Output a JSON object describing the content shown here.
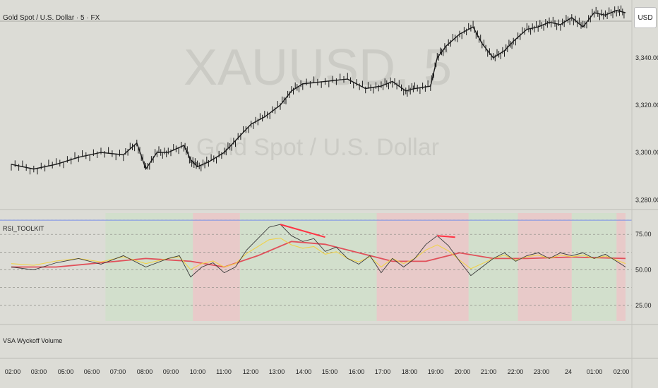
{
  "header": {
    "symbol_title": "Gold Spot / U.S. Dollar · 5 · FX",
    "watermark_symbol": "XAUUSD, 5",
    "watermark_name": "Gold Spot / U.S. Dollar"
  },
  "currency_button": "USD",
  "indicator_rsi": {
    "title": "RSI_TOOLKIT",
    "levels": [
      "75.00",
      "50.00",
      "25.00"
    ]
  },
  "indicator_volume": {
    "title": "VSA Wyckoff Volume"
  },
  "colors": {
    "background": "#dcdcd6",
    "candle": "#1a1a1a",
    "rsi_line": "#3a3a3a",
    "rsi_ma_red": "#e0505a",
    "rsi_ma_yellow": "#f0d24a",
    "zone_bull": "#cfe0c8",
    "zone_bear": "#ecc4c4",
    "divergence": "#ff3344",
    "level_blue": "#7890e8"
  },
  "chart_data": {
    "type": "line",
    "price_axis": [
      "3,340.00",
      "3,320.00",
      "3,300.00",
      "3,280.00"
    ],
    "price_ylim": [
      3278,
      3362
    ],
    "time_axis": [
      "02:00",
      "03:00",
      "05:00",
      "06:00",
      "07:00",
      "08:00",
      "09:00",
      "10:00",
      "11:00",
      "12:00",
      "13:00",
      "14:00",
      "15:00",
      "16:00",
      "17:00",
      "18:00",
      "19:00",
      "20:00",
      "21:00",
      "22:00",
      "23:00",
      "24",
      "01:00",
      "02:00"
    ],
    "price_series": [
      {
        "x": 0,
        "y": 3295
      },
      {
        "x": 1,
        "y": 3293
      },
      {
        "x": 2,
        "y": 3295
      },
      {
        "x": 3,
        "y": 3298
      },
      {
        "x": 4,
        "y": 3300
      },
      {
        "x": 5,
        "y": 3299
      },
      {
        "x": 5.6,
        "y": 3304
      },
      {
        "x": 6,
        "y": 3293
      },
      {
        "x": 6.5,
        "y": 3300
      },
      {
        "x": 7,
        "y": 3300
      },
      {
        "x": 7.7,
        "y": 3303
      },
      {
        "x": 8,
        "y": 3297
      },
      {
        "x": 8.3,
        "y": 3294
      },
      {
        "x": 8.8,
        "y": 3296
      },
      {
        "x": 9.5,
        "y": 3300
      },
      {
        "x": 10,
        "y": 3305
      },
      {
        "x": 10.7,
        "y": 3312
      },
      {
        "x": 11.3,
        "y": 3315
      },
      {
        "x": 12,
        "y": 3320
      },
      {
        "x": 12.5,
        "y": 3326
      },
      {
        "x": 13,
        "y": 3329
      },
      {
        "x": 14,
        "y": 3330
      },
      {
        "x": 15,
        "y": 3331
      },
      {
        "x": 15.8,
        "y": 3327
      },
      {
        "x": 16.5,
        "y": 3328
      },
      {
        "x": 17,
        "y": 3330
      },
      {
        "x": 17.6,
        "y": 3326
      },
      {
        "x": 18,
        "y": 3327
      },
      {
        "x": 18.7,
        "y": 3328
      },
      {
        "x": 19,
        "y": 3340
      },
      {
        "x": 19.4,
        "y": 3345
      },
      {
        "x": 20,
        "y": 3350
      },
      {
        "x": 20.6,
        "y": 3353
      },
      {
        "x": 21,
        "y": 3346
      },
      {
        "x": 21.5,
        "y": 3340
      },
      {
        "x": 22,
        "y": 3343
      },
      {
        "x": 22.4,
        "y": 3347
      },
      {
        "x": 23,
        "y": 3352
      },
      {
        "x": 23.5,
        "y": 3353
      },
      {
        "x": 24,
        "y": 3355
      },
      {
        "x": 24.5,
        "y": 3354
      },
      {
        "x": 25,
        "y": 3357
      },
      {
        "x": 25.5,
        "y": 3353
      },
      {
        "x": 26,
        "y": 3359
      },
      {
        "x": 26.5,
        "y": 3358
      },
      {
        "x": 27,
        "y": 3360
      },
      {
        "x": 27.4,
        "y": 3359
      }
    ],
    "rsi_ylim": [
      14,
      90
    ],
    "rsi_series": [
      {
        "x": 0,
        "y": 52
      },
      {
        "x": 1,
        "y": 50
      },
      {
        "x": 2,
        "y": 55
      },
      {
        "x": 3,
        "y": 58
      },
      {
        "x": 4,
        "y": 54
      },
      {
        "x": 5,
        "y": 60
      },
      {
        "x": 6,
        "y": 52
      },
      {
        "x": 7,
        "y": 58
      },
      {
        "x": 7.5,
        "y": 60
      },
      {
        "x": 8,
        "y": 45
      },
      {
        "x": 8.5,
        "y": 52
      },
      {
        "x": 9,
        "y": 55
      },
      {
        "x": 9.5,
        "y": 48
      },
      {
        "x": 10,
        "y": 52
      },
      {
        "x": 10.5,
        "y": 64
      },
      {
        "x": 11,
        "y": 72
      },
      {
        "x": 11.5,
        "y": 80
      },
      {
        "x": 12,
        "y": 82
      },
      {
        "x": 12.5,
        "y": 74
      },
      {
        "x": 13,
        "y": 70
      },
      {
        "x": 13.5,
        "y": 72
      },
      {
        "x": 14,
        "y": 63
      },
      {
        "x": 14.5,
        "y": 66
      },
      {
        "x": 15,
        "y": 58
      },
      {
        "x": 15.5,
        "y": 54
      },
      {
        "x": 16,
        "y": 60
      },
      {
        "x": 16.5,
        "y": 48
      },
      {
        "x": 17,
        "y": 58
      },
      {
        "x": 17.5,
        "y": 52
      },
      {
        "x": 18,
        "y": 58
      },
      {
        "x": 18.5,
        "y": 68
      },
      {
        "x": 19,
        "y": 74
      },
      {
        "x": 19.5,
        "y": 67
      },
      {
        "x": 20,
        "y": 56
      },
      {
        "x": 20.5,
        "y": 46
      },
      {
        "x": 21,
        "y": 52
      },
      {
        "x": 21.5,
        "y": 58
      },
      {
        "x": 22,
        "y": 62
      },
      {
        "x": 22.5,
        "y": 56
      },
      {
        "x": 23,
        "y": 60
      },
      {
        "x": 23.5,
        "y": 62
      },
      {
        "x": 24,
        "y": 58
      },
      {
        "x": 24.5,
        "y": 62
      },
      {
        "x": 25,
        "y": 60
      },
      {
        "x": 25.5,
        "y": 62
      },
      {
        "x": 26,
        "y": 58
      },
      {
        "x": 26.5,
        "y": 61
      },
      {
        "x": 27,
        "y": 56
      },
      {
        "x": 27.4,
        "y": 52
      }
    ],
    "rsi_ma_series": [
      {
        "x": 0,
        "y": 52
      },
      {
        "x": 2,
        "y": 52
      },
      {
        "x": 4,
        "y": 55
      },
      {
        "x": 6,
        "y": 58
      },
      {
        "x": 8,
        "y": 56
      },
      {
        "x": 9.5,
        "y": 52
      },
      {
        "x": 11,
        "y": 60
      },
      {
        "x": 12.5,
        "y": 70
      },
      {
        "x": 14,
        "y": 68
      },
      {
        "x": 15.5,
        "y": 62
      },
      {
        "x": 17,
        "y": 56
      },
      {
        "x": 18.5,
        "y": 56
      },
      {
        "x": 20,
        "y": 62
      },
      {
        "x": 21.5,
        "y": 58
      },
      {
        "x": 23,
        "y": 58
      },
      {
        "x": 25,
        "y": 59
      },
      {
        "x": 27.4,
        "y": 58
      }
    ],
    "xlabel": "",
    "ylabel": ""
  }
}
